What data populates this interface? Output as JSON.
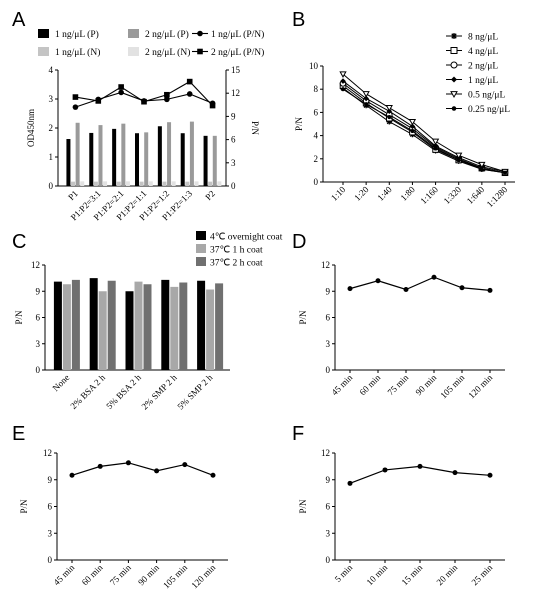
{
  "chart_data": [
    {
      "panel": "A",
      "type": "bar",
      "categories": [
        "P1",
        "P1:P2=3:1",
        "P1:P2=2:1",
        "P1:P2=1:1",
        "P1:P2=1:2",
        "P1:P2=1:3",
        "P2"
      ],
      "ylabel": "OD450nm",
      "ylim": [
        0,
        4
      ],
      "yticks": [
        0,
        1,
        2,
        3,
        4
      ],
      "y2label": "P/N",
      "y2lim": [
        0,
        15
      ],
      "y2ticks": [
        0,
        3,
        6,
        9,
        12,
        15
      ],
      "legend": [
        "1 ng/μL (P)",
        "2 ng/μL (P)",
        "1 ng/μL (P/N)",
        "1 ng/μL (N)",
        "2 ng/μL (N)",
        "2 ng/μL (P/N)"
      ],
      "series": [
        {
          "name": "1 ng/μL (P)",
          "kind": "bar",
          "color": "#000000",
          "values": [
            1.62,
            1.83,
            1.97,
            1.82,
            2.06,
            1.82,
            1.73
          ]
        },
        {
          "name": "2 ng/μL (P)",
          "kind": "bar",
          "color": "#9a9a9a",
          "values": [
            2.18,
            2.1,
            2.15,
            1.85,
            2.2,
            2.22,
            1.73
          ]
        },
        {
          "name": "1 ng/μL (N)",
          "kind": "bar",
          "color": "#c4c4c4",
          "values": [
            0.15,
            0.15,
            0.15,
            0.15,
            0.15,
            0.15,
            0.15
          ]
        },
        {
          "name": "2 ng/μL (N)",
          "kind": "bar",
          "color": "#e2e2e2",
          "values": [
            0.16,
            0.16,
            0.16,
            0.16,
            0.16,
            0.16,
            0.16
          ]
        },
        {
          "name": "1 ng/μL (P/N)",
          "kind": "line",
          "marker": "circle",
          "values": [
            10.2,
            11.2,
            12.1,
            11.0,
            11.2,
            11.9,
            10.7
          ]
        },
        {
          "name": "2 ng/μL (P/N)",
          "kind": "line",
          "marker": "square",
          "values": [
            11.5,
            11.0,
            12.8,
            10.9,
            11.8,
            13.5,
            10.4
          ]
        }
      ]
    },
    {
      "panel": "B",
      "type": "line",
      "categories": [
        "1:10",
        "1:20",
        "1:40",
        "1:80",
        "1:160",
        "1:320",
        "1:640",
        "1:1280"
      ],
      "ylabel": "P/N",
      "ylim": [
        0,
        10
      ],
      "yticks": [
        0,
        2,
        4,
        6,
        8,
        10
      ],
      "series": [
        {
          "name": "8 ng/μL",
          "marker": "star",
          "values": [
            8.1,
            6.6,
            5.2,
            4.1,
            2.7,
            1.8,
            1.1,
            0.8
          ]
        },
        {
          "name": "4 ng/μL",
          "marker": "square-open",
          "values": [
            8.3,
            6.8,
            5.5,
            4.3,
            2.8,
            1.9,
            1.2,
            0.8
          ]
        },
        {
          "name": "2 ng/μL",
          "marker": "circle-open",
          "values": [
            8.5,
            7.0,
            5.8,
            4.6,
            3.0,
            2.0,
            1.2,
            0.8
          ]
        },
        {
          "name": "1 ng/μL",
          "marker": "diamond",
          "values": [
            8.7,
            7.2,
            6.1,
            4.8,
            3.1,
            2.1,
            1.3,
            0.9
          ]
        },
        {
          "name": "0.5 ng/μL",
          "marker": "triangle-down",
          "values": [
            9.3,
            7.6,
            6.4,
            5.2,
            3.5,
            2.3,
            1.5,
            0.9
          ]
        },
        {
          "name": "0.25 ng/μL",
          "marker": "dot",
          "values": [
            8.0,
            6.7,
            5.6,
            4.4,
            2.9,
            1.9,
            1.1,
            0.8
          ]
        }
      ]
    },
    {
      "panel": "C",
      "type": "bar",
      "categories": [
        "None",
        "2% BSA 2 h",
        "5% BSA 2 h",
        "2% SMP 2 h",
        "5% SMP 2 h"
      ],
      "ylabel": "P/N",
      "ylim": [
        0,
        12
      ],
      "yticks": [
        0,
        3,
        6,
        9,
        12
      ],
      "series": [
        {
          "name": "4℃ overnight coat",
          "color": "#000000",
          "values": [
            10.1,
            10.5,
            9.0,
            10.3,
            10.2
          ]
        },
        {
          "name": "37℃ 1 h coat",
          "color": "#a8a8a8",
          "values": [
            9.8,
            9.0,
            10.1,
            9.5,
            9.2
          ]
        },
        {
          "name": "37℃ 2 h coat",
          "color": "#707070",
          "values": [
            10.3,
            10.2,
            9.8,
            10.0,
            9.9
          ]
        }
      ]
    },
    {
      "panel": "D",
      "type": "line",
      "categories": [
        "45 min",
        "60 min",
        "75 min",
        "90 min",
        "105 min",
        "120 min"
      ],
      "ylabel": "P/N",
      "ylim": [
        0,
        12
      ],
      "yticks": [
        0,
        3,
        6,
        9,
        12
      ],
      "series": [
        {
          "values": [
            9.3,
            10.2,
            9.2,
            10.6,
            9.4,
            9.1
          ]
        }
      ]
    },
    {
      "panel": "E",
      "type": "line",
      "categories": [
        "45 min",
        "60 min",
        "75 min",
        "90 min",
        "105 min",
        "120 min"
      ],
      "ylabel": "P/N",
      "ylim": [
        0,
        12
      ],
      "yticks": [
        0,
        3,
        6,
        9,
        12
      ],
      "series": [
        {
          "values": [
            9.5,
            10.5,
            10.9,
            10.0,
            10.7,
            9.5
          ]
        }
      ]
    },
    {
      "panel": "F",
      "type": "line",
      "categories": [
        "5 min",
        "10 min",
        "15 min",
        "20 min",
        "25 min"
      ],
      "ylabel": "P/N",
      "ylim": [
        0,
        12
      ],
      "yticks": [
        0,
        3,
        6,
        9,
        12
      ],
      "series": [
        {
          "values": [
            8.6,
            10.1,
            10.5,
            9.8,
            9.5
          ]
        }
      ]
    }
  ]
}
